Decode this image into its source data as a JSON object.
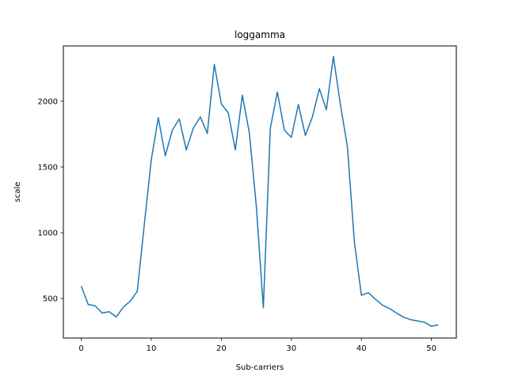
{
  "chart_data": {
    "type": "line",
    "title": "loggamma",
    "xlabel": "Sub-carriers",
    "ylabel": "scale",
    "xlim": [
      -2.55,
      53.55
    ],
    "ylim": [
      200,
      2420
    ],
    "xticks": [
      0,
      10,
      20,
      30,
      40,
      50
    ],
    "yticks": [
      500,
      1000,
      1500,
      2000
    ],
    "grid": false,
    "line_color": "#1f77b4",
    "series": [
      {
        "x": [
          0,
          1,
          2,
          3,
          4,
          5,
          6,
          7,
          8,
          9,
          10,
          11,
          12,
          13,
          14,
          15,
          16,
          17,
          18,
          19,
          20,
          21,
          22,
          23,
          24,
          25,
          26,
          27,
          28,
          29,
          30,
          31,
          32,
          33,
          34,
          35,
          36,
          37,
          38,
          39,
          40,
          41,
          42,
          43,
          44,
          45,
          46,
          47,
          48,
          49,
          50,
          51
        ],
        "values": [
          595,
          455,
          445,
          390,
          400,
          360,
          435,
          480,
          555,
          1060,
          1555,
          1875,
          1585,
          1780,
          1865,
          1630,
          1795,
          1880,
          1755,
          2280,
          1980,
          1910,
          1630,
          2045,
          1760,
          1200,
          430,
          1795,
          2070,
          1780,
          1725,
          1975,
          1740,
          1880,
          2095,
          1935,
          2340,
          1975,
          1655,
          930,
          525,
          545,
          495,
          450,
          425,
          390,
          360,
          340,
          330,
          320,
          290,
          300
        ]
      }
    ]
  }
}
